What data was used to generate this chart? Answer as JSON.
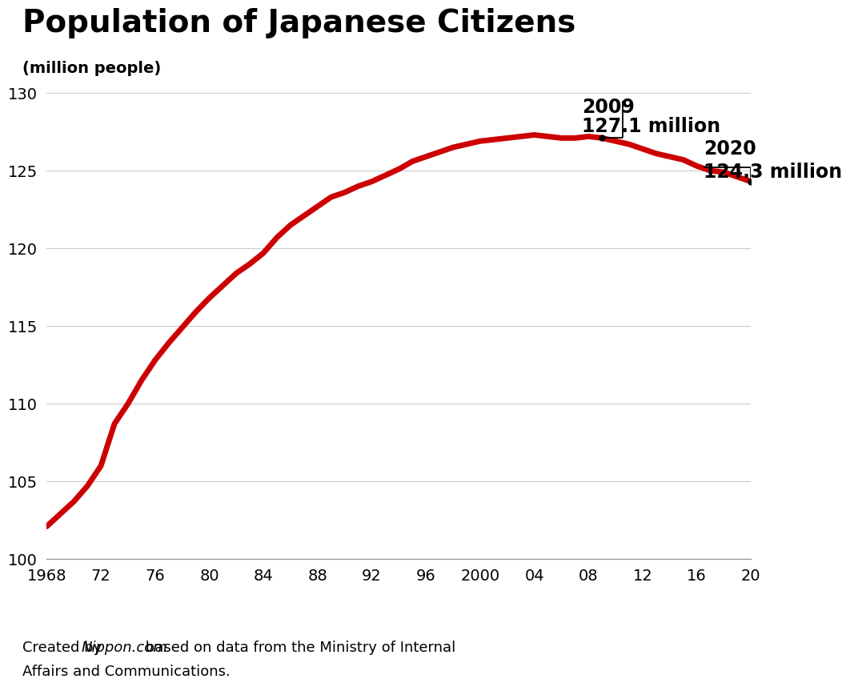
{
  "title": "Population of Japanese Citizens",
  "ylabel": "(million people)",
  "line_color": "#cc0000",
  "line_width": 5,
  "background_color": "#ffffff",
  "years": [
    1968,
    1969,
    1970,
    1971,
    1972,
    1973,
    1974,
    1975,
    1976,
    1977,
    1978,
    1979,
    1980,
    1981,
    1982,
    1983,
    1984,
    1985,
    1986,
    1987,
    1988,
    1989,
    1990,
    1991,
    1992,
    1993,
    1994,
    1995,
    1996,
    1997,
    1998,
    1999,
    2000,
    2001,
    2002,
    2003,
    2004,
    2005,
    2006,
    2007,
    2008,
    2009,
    2010,
    2011,
    2012,
    2013,
    2014,
    2015,
    2016,
    2017,
    2018,
    2019,
    2020
  ],
  "population": [
    102.1,
    102.9,
    103.7,
    104.7,
    106.0,
    108.7,
    110.0,
    111.5,
    112.8,
    113.9,
    114.9,
    115.9,
    116.8,
    117.6,
    118.4,
    119.0,
    119.7,
    120.7,
    121.5,
    122.1,
    122.7,
    123.3,
    123.6,
    124.0,
    124.3,
    124.7,
    125.1,
    125.6,
    125.9,
    126.2,
    126.5,
    126.7,
    126.9,
    127.0,
    127.1,
    127.2,
    127.3,
    127.2,
    127.1,
    127.1,
    127.2,
    127.1,
    126.9,
    126.7,
    126.4,
    126.1,
    125.9,
    125.7,
    125.3,
    125.0,
    124.9,
    124.6,
    124.3
  ],
  "xlim": [
    1968,
    2020
  ],
  "ylim": [
    100,
    130
  ],
  "yticks": [
    100,
    105,
    110,
    115,
    120,
    125,
    130
  ],
  "xtick_labels": [
    "1968",
    "72",
    "76",
    "80",
    "84",
    "88",
    "92",
    "96",
    "2000",
    "04",
    "08",
    "12",
    "16",
    "20"
  ],
  "xtick_positions": [
    1968,
    1972,
    1976,
    1980,
    1984,
    1988,
    1992,
    1996,
    2000,
    2004,
    2008,
    2012,
    2016,
    2020
  ],
  "annotation_2009_year": 2009,
  "annotation_2009_val": 127.1,
  "annotation_2009_text1": "2009",
  "annotation_2009_text2": "127.1 million",
  "annotation_2020_year": 2020,
  "annotation_2020_val": 124.3,
  "annotation_2020_text1": "2020",
  "annotation_2020_text2": "124.3 million",
  "title_fontsize": 28,
  "ylabel_fontsize": 14,
  "tick_fontsize": 14,
  "annotation_fontsize": 17,
  "footer_fontsize": 13
}
